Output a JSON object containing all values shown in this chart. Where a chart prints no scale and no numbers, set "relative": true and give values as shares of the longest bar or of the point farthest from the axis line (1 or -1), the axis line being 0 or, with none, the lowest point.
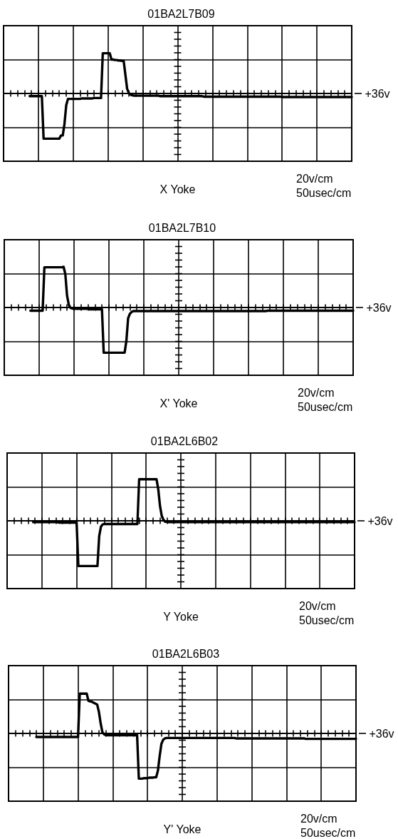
{
  "chart_data": [
    {
      "type": "line",
      "title": "01BA2L7B09",
      "xlabel": "X Yoke",
      "annotations": [
        "20v/cm",
        "50usec/cm"
      ],
      "relative": true,
      "grid": true,
      "marker": "none",
      "color": "#000000",
      "ref_lines": [
        {
          "axis": "y",
          "value": 0,
          "label": "+36v"
        }
      ],
      "categories": [
        null,
        null,
        null,
        null,
        null,
        null,
        null,
        null,
        null,
        null,
        null,
        null,
        null,
        null,
        null,
        null,
        null,
        null,
        null,
        null,
        null,
        null,
        null,
        null,
        null,
        null,
        null,
        null,
        null,
        null,
        null,
        null,
        null,
        null,
        null,
        null,
        null,
        null,
        null,
        null,
        null,
        null,
        null,
        null,
        null,
        null,
        null,
        null,
        null,
        null,
        null,
        null,
        null,
        null,
        null,
        null,
        null,
        null,
        null,
        null,
        null,
        null,
        null,
        null,
        null,
        null,
        null,
        null,
        null,
        null,
        null,
        null,
        null,
        null,
        null,
        null,
        null,
        null,
        null,
        null,
        null,
        null,
        null,
        null,
        null,
        null,
        null,
        null,
        null,
        null,
        null,
        null,
        null,
        null,
        null,
        null,
        null,
        null,
        null,
        null,
        null,
        null,
        null,
        null,
        null,
        null,
        null,
        null,
        null,
        null,
        null,
        null,
        null,
        null,
        null,
        null,
        null,
        null,
        null,
        null,
        null,
        null,
        null,
        null,
        null,
        null,
        null,
        null,
        null,
        null,
        null,
        null,
        null,
        null,
        null,
        null,
        null,
        null,
        null,
        null,
        null,
        null,
        null,
        null,
        null,
        null,
        null,
        null,
        null,
        null,
        null,
        null,
        null,
        null,
        null,
        null,
        null,
        null,
        null,
        null,
        null,
        null,
        null,
        null,
        null,
        null,
        null,
        null,
        null,
        null,
        null,
        null,
        null,
        null,
        null,
        null,
        null,
        null,
        null,
        null,
        null,
        null,
        null,
        null,
        null,
        null,
        null,
        null,
        null,
        null,
        null,
        null,
        null,
        null,
        null,
        null,
        null,
        null,
        null,
        null,
        null
      ],
      "values": [
        null,
        null,
        null,
        null,
        null,
        null,
        null,
        null,
        null,
        null,
        null,
        null,
        null,
        null,
        null,
        -0.06,
        -0.06,
        -0.06,
        -0.06,
        -0.06,
        -0.06,
        -0.06,
        -0.06,
        -1,
        -1,
        -1,
        -1,
        -1,
        -1,
        -1,
        -1,
        -1,
        -1,
        -0.93,
        -0.93,
        -0.67,
        -0.26,
        -0.12,
        -0.12,
        -0.12,
        -0.12,
        -0.12,
        -0.12,
        -0.12,
        -0.12,
        -0.11,
        -0.11,
        -0.11,
        -0.11,
        -0.11,
        -0.11,
        -0.11,
        -0.1,
        -0.1,
        -0.1,
        -0.1,
        -0.1,
        0.89,
        0.89,
        0.89,
        0.89,
        0.89,
        0.75,
        0.75,
        0.74,
        0.74,
        0.73,
        0.73,
        0.72,
        0.72,
        0.41,
        0.1,
        0.01,
        -0.03,
        -0.04,
        -0.05,
        -0.05,
        -0.05,
        -0.05,
        -0.05,
        -0.05,
        -0.05,
        -0.05,
        -0.05,
        -0.05,
        -0.05,
        -0.05,
        -0.05,
        -0.05,
        -0.05,
        -0.06,
        -0.06,
        -0.06,
        -0.06,
        -0.06,
        -0.06,
        -0.06,
        -0.06,
        -0.06,
        -0.06,
        -0.06,
        -0.06,
        -0.06,
        -0.06,
        -0.06,
        -0.06,
        -0.06,
        -0.06,
        -0.06,
        -0.06,
        -0.06,
        -0.06,
        -0.06,
        -0.06,
        -0.06,
        -0.07,
        -0.07,
        -0.07,
        -0.07,
        -0.07,
        -0.07,
        -0.07,
        -0.07,
        -0.07,
        -0.07,
        -0.07,
        -0.07,
        -0.07,
        -0.07,
        -0.07,
        -0.07,
        -0.07,
        -0.07,
        -0.07,
        -0.07,
        -0.07,
        -0.07,
        -0.07,
        -0.07,
        -0.07,
        -0.07,
        -0.07,
        -0.07,
        -0.07,
        -0.07,
        -0.07,
        -0.07,
        -0.07,
        -0.07,
        -0.07,
        -0.07,
        -0.07,
        -0.07,
        -0.07,
        -0.07,
        -0.07,
        -0.07,
        -0.07,
        -0.07,
        -0.07,
        -0.08,
        -0.08,
        -0.08,
        -0.08,
        -0.08,
        -0.08,
        -0.08,
        -0.08,
        -0.08,
        -0.08,
        -0.08,
        -0.08,
        -0.08,
        -0.08,
        -0.08,
        -0.08,
        -0.08,
        -0.08,
        -0.08,
        -0.08,
        -0.08,
        -0.08,
        -0.08,
        -0.08,
        -0.08,
        -0.08,
        -0.08,
        -0.08,
        -0.08,
        -0.08,
        -0.08,
        -0.08,
        -0.08,
        -0.08,
        -0.08,
        -0.08,
        -0.08,
        -0.08,
        -0.08,
        -0.08,
        -0.08
      ]
    },
    {
      "type": "line",
      "title": "01BA2L7B10",
      "xlabel": "X' Yoke",
      "annotations": [
        "20v/cm",
        "50usec/cm"
      ],
      "relative": true,
      "grid": true,
      "marker": "none",
      "color": "#000000",
      "ref_lines": [
        {
          "axis": "y",
          "value": 0,
          "label": "+36v"
        }
      ],
      "categories": [
        null,
        null,
        null,
        null,
        null,
        null,
        null,
        null,
        null,
        null,
        null,
        null,
        null,
        null,
        null,
        null,
        null,
        null,
        null,
        null,
        null,
        null,
        null,
        null,
        null,
        null,
        null,
        null,
        null,
        null,
        null,
        null,
        null,
        null,
        null,
        null,
        null,
        null,
        null,
        null,
        null,
        null,
        null,
        null,
        null,
        null,
        null,
        null,
        null,
        null,
        null,
        null,
        null,
        null,
        null,
        null,
        null,
        null,
        null,
        null,
        null,
        null,
        null,
        null,
        null,
        null,
        null,
        null,
        null,
        null,
        null,
        null,
        null,
        null,
        null,
        null,
        null,
        null,
        null,
        null,
        null,
        null,
        null,
        null,
        null,
        null,
        null,
        null,
        null,
        null,
        null,
        null,
        null,
        null,
        null,
        null,
        null,
        null,
        null,
        null,
        null,
        null,
        null,
        null,
        null,
        null,
        null,
        null,
        null,
        null,
        null,
        null,
        null,
        null,
        null,
        null,
        null,
        null,
        null,
        null,
        null,
        null,
        null,
        null,
        null,
        null,
        null,
        null,
        null,
        null,
        null,
        null,
        null,
        null,
        null,
        null,
        null,
        null,
        null,
        null,
        null,
        null,
        null,
        null,
        null,
        null,
        null,
        null,
        null,
        null,
        null,
        null,
        null,
        null,
        null,
        null,
        null,
        null,
        null,
        null,
        null,
        null,
        null,
        null,
        null,
        null,
        null,
        null,
        null,
        null,
        null,
        null,
        null,
        null,
        null,
        null,
        null,
        null,
        null,
        null,
        null,
        null,
        null,
        null,
        null,
        null,
        null,
        null,
        null,
        null,
        null,
        null,
        null,
        null,
        null,
        null,
        null,
        null,
        null,
        null,
        null
      ],
      "values": [
        null,
        null,
        null,
        null,
        null,
        null,
        null,
        null,
        null,
        null,
        null,
        null,
        null,
        null,
        null,
        -0.07,
        -0.07,
        -0.07,
        -0.07,
        -0.07,
        -0.07,
        -0.07,
        -0.07,
        0.89,
        0.89,
        0.89,
        0.89,
        0.89,
        0.89,
        0.89,
        0.89,
        0.89,
        0.89,
        0.89,
        0.9,
        0.74,
        0.26,
        0.06,
        -0.01,
        -0.02,
        -0.03,
        -0.03,
        -0.03,
        -0.03,
        -0.03,
        -0.03,
        -0.03,
        -0.03,
        -0.03,
        -0.04,
        -0.04,
        -0.04,
        -0.04,
        -0.04,
        -0.04,
        -0.04,
        -0.04,
        -1,
        -1,
        -1,
        -1,
        -1,
        -1,
        -1,
        -1,
        -1,
        -1,
        -1,
        -1,
        -1,
        -0.74,
        -0.24,
        -0.14,
        -0.1,
        -0.08,
        -0.08,
        -0.08,
        -0.08,
        -0.08,
        -0.08,
        -0.08,
        -0.08,
        -0.08,
        -0.08,
        -0.08,
        -0.08,
        -0.08,
        -0.08,
        -0.08,
        -0.08,
        -0.08,
        -0.08,
        -0.08,
        -0.08,
        -0.08,
        -0.08,
        -0.08,
        -0.08,
        -0.08,
        -0.08,
        -0.08,
        -0.08,
        -0.08,
        -0.08,
        -0.08,
        -0.08,
        -0.08,
        -0.08,
        -0.08,
        -0.08,
        -0.08,
        -0.08,
        -0.08,
        -0.08,
        -0.08,
        -0.08,
        -0.08,
        -0.08,
        -0.08,
        -0.08,
        -0.08,
        -0.08,
        -0.08,
        -0.08,
        -0.08,
        -0.08,
        -0.08,
        -0.08,
        -0.08,
        -0.08,
        -0.08,
        -0.08,
        -0.08,
        -0.08,
        -0.08,
        -0.08,
        -0.08,
        -0.08,
        -0.08,
        -0.08,
        -0.08,
        -0.08,
        -0.08,
        -0.08,
        -0.08,
        -0.08,
        -0.08,
        -0.08,
        -0.08,
        -0.08,
        -0.08,
        -0.07,
        -0.07,
        -0.07,
        -0.07,
        -0.07,
        -0.07,
        -0.07,
        -0.07,
        -0.07,
        -0.07,
        -0.07,
        -0.07,
        -0.07,
        -0.07,
        -0.07,
        -0.07,
        -0.07,
        -0.07,
        -0.07,
        -0.07,
        -0.07,
        -0.07,
        -0.07,
        -0.07,
        -0.07,
        -0.07,
        -0.07,
        -0.07,
        -0.07,
        -0.07,
        -0.07,
        -0.07,
        -0.07,
        -0.07,
        -0.07,
        -0.07,
        -0.07,
        -0.07,
        -0.07,
        -0.07,
        -0.07,
        -0.07,
        -0.07,
        -0.07,
        -0.07,
        -0.07,
        -0.07,
        -0.07,
        -0.07,
        -0.07
      ]
    },
    {
      "type": "line",
      "title": "01BA2L6B02",
      "xlabel": "Y Yoke",
      "annotations": [
        "20v/cm",
        "50usec/cm"
      ],
      "relative": true,
      "grid": true,
      "marker": "none",
      "color": "#000000",
      "ref_lines": [
        {
          "axis": "y",
          "value": 0,
          "label": "+36v"
        }
      ],
      "categories": [
        null,
        null,
        null,
        null,
        null,
        null,
        null,
        null,
        null,
        null,
        null,
        null,
        null,
        null,
        null,
        null,
        null,
        null,
        null,
        null,
        null,
        null,
        null,
        null,
        null,
        null,
        null,
        null,
        null,
        null,
        null,
        null,
        null,
        null,
        null,
        null,
        null,
        null,
        null,
        null,
        null,
        null,
        null,
        null,
        null,
        null,
        null,
        null,
        null,
        null,
        null,
        null,
        null,
        null,
        null,
        null,
        null,
        null,
        null,
        null,
        null,
        null,
        null,
        null,
        null,
        null,
        null,
        null,
        null,
        null,
        null,
        null,
        null,
        null,
        null,
        null,
        null,
        null,
        null,
        null,
        null,
        null,
        null,
        null,
        null,
        null,
        null,
        null,
        null,
        null,
        null,
        null,
        null,
        null,
        null,
        null,
        null,
        null,
        null,
        null,
        null,
        null,
        null,
        null,
        null,
        null,
        null,
        null,
        null,
        null,
        null,
        null,
        null,
        null,
        null,
        null,
        null,
        null,
        null,
        null,
        null,
        null,
        null,
        null,
        null,
        null,
        null,
        null,
        null,
        null,
        null,
        null,
        null,
        null,
        null,
        null,
        null,
        null,
        null,
        null,
        null,
        null,
        null,
        null,
        null,
        null,
        null,
        null,
        null,
        null,
        null,
        null,
        null,
        null,
        null,
        null,
        null,
        null,
        null,
        null,
        null,
        null,
        null,
        null,
        null,
        null,
        null,
        null,
        null,
        null,
        null,
        null,
        null,
        null,
        null,
        null,
        null,
        null,
        null,
        null,
        null,
        null,
        null,
        null,
        null,
        null,
        null,
        null,
        null,
        null,
        null,
        null,
        null,
        null,
        null,
        null,
        null,
        null,
        null,
        null,
        null
      ],
      "values": [
        null,
        null,
        null,
        null,
        null,
        null,
        null,
        null,
        null,
        null,
        null,
        null,
        null,
        null,
        null,
        -0.03,
        -0.03,
        -0.03,
        -0.03,
        -0.03,
        -0.03,
        -0.03,
        -0.03,
        -0.03,
        -0.03,
        -0.03,
        -0.03,
        -0.03,
        -0.03,
        -0.03,
        -0.04,
        -0.04,
        -0.04,
        -0.04,
        -0.04,
        -0.04,
        -0.04,
        -0.04,
        -0.04,
        -0.04,
        -0.04,
        -1,
        -1,
        -1,
        -1,
        -1,
        -1,
        -1,
        -1,
        -1,
        -1,
        -1,
        -1,
        -0.34,
        -0.13,
        -0.08,
        -0.07,
        -0.07,
        -0.07,
        -0.07,
        -0.07,
        -0.07,
        -0.07,
        -0.07,
        -0.07,
        -0.07,
        -0.07,
        -0.07,
        -0.07,
        -0.07,
        -0.07,
        -0.07,
        -0.07,
        -0.07,
        -0.07,
        -0.07,
        0.92,
        0.92,
        0.92,
        0.92,
        0.92,
        0.92,
        0.92,
        0.92,
        0.92,
        0.92,
        0.92,
        0.7,
        0.33,
        0.11,
        0.02,
        -0.02,
        -0.02,
        -0.03,
        -0.03,
        -0.03,
        -0.03,
        -0.03,
        -0.03,
        -0.03,
        -0.03,
        -0.03,
        -0.03,
        -0.03,
        -0.03,
        -0.03,
        -0.03,
        -0.03,
        -0.03,
        -0.03,
        -0.03,
        -0.03,
        -0.03,
        -0.03,
        -0.03,
        -0.03,
        -0.03,
        -0.03,
        -0.03,
        -0.03,
        -0.03,
        -0.03,
        -0.03,
        -0.03,
        -0.03,
        -0.03,
        -0.03,
        -0.03,
        -0.03,
        -0.03,
        -0.03,
        -0.03,
        -0.03,
        -0.03,
        -0.03,
        -0.03,
        -0.03,
        -0.03,
        -0.03,
        -0.03,
        -0.03,
        -0.03,
        -0.03,
        -0.03,
        -0.03,
        -0.03,
        -0.03,
        -0.03,
        -0.03,
        -0.03,
        -0.03,
        -0.03,
        -0.03,
        -0.03,
        -0.03,
        -0.03,
        -0.03,
        -0.03,
        -0.03,
        -0.03,
        -0.03,
        -0.03,
        -0.03,
        -0.03,
        -0.03,
        -0.03,
        -0.03,
        -0.03,
        -0.03,
        -0.03,
        -0.03,
        -0.03,
        -0.03,
        -0.03,
        -0.03,
        -0.03,
        -0.03,
        -0.03,
        -0.03,
        -0.03,
        -0.03,
        -0.03,
        -0.03,
        -0.03,
        -0.03,
        -0.03,
        -0.03,
        -0.03,
        -0.03,
        -0.03,
        -0.03,
        -0.03,
        -0.03,
        -0.03,
        -0.03,
        -0.03,
        -0.03,
        -0.03,
        -0.03,
        -0.03,
        -0.03
      ]
    },
    {
      "type": "line",
      "title": "01BA2L6B03",
      "xlabel": "Y' Yoke",
      "annotations": [
        "20v/cm",
        "50usec/cm"
      ],
      "relative": true,
      "grid": true,
      "marker": "none",
      "color": "#000000",
      "ref_lines": [
        {
          "axis": "y",
          "value": 0,
          "label": "+36v"
        }
      ],
      "categories": [
        null,
        null,
        null,
        null,
        null,
        null,
        null,
        null,
        null,
        null,
        null,
        null,
        null,
        null,
        null,
        null,
        null,
        null,
        null,
        null,
        null,
        null,
        null,
        null,
        null,
        null,
        null,
        null,
        null,
        null,
        null,
        null,
        null,
        null,
        null,
        null,
        null,
        null,
        null,
        null,
        null,
        null,
        null,
        null,
        null,
        null,
        null,
        null,
        null,
        null,
        null,
        null,
        null,
        null,
        null,
        null,
        null,
        null,
        null,
        null,
        null,
        null,
        null,
        null,
        null,
        null,
        null,
        null,
        null,
        null,
        null,
        null,
        null,
        null,
        null,
        null,
        null,
        null,
        null,
        null,
        null,
        null,
        null,
        null,
        null,
        null,
        null,
        null,
        null,
        null,
        null,
        null,
        null,
        null,
        null,
        null,
        null,
        null,
        null,
        null,
        null,
        null,
        null,
        null,
        null,
        null,
        null,
        null,
        null,
        null,
        null,
        null,
        null,
        null,
        null,
        null,
        null,
        null,
        null,
        null,
        null,
        null,
        null,
        null,
        null,
        null,
        null,
        null,
        null,
        null,
        null,
        null,
        null,
        null,
        null,
        null,
        null,
        null,
        null,
        null,
        null,
        null,
        null,
        null,
        null,
        null,
        null,
        null,
        null,
        null,
        null,
        null,
        null,
        null,
        null,
        null,
        null,
        null,
        null,
        null,
        null,
        null,
        null,
        null,
        null,
        null,
        null,
        null,
        null,
        null,
        null,
        null,
        null,
        null,
        null,
        null,
        null,
        null,
        null,
        null,
        null,
        null,
        null,
        null,
        null,
        null,
        null,
        null,
        null,
        null,
        null,
        null,
        null,
        null,
        null,
        null,
        null,
        null,
        null,
        null,
        null
      ],
      "values": [
        null,
        null,
        null,
        null,
        null,
        null,
        null,
        null,
        null,
        null,
        null,
        null,
        null,
        null,
        null,
        null,
        -0.08,
        -0.08,
        -0.08,
        -0.08,
        -0.08,
        -0.08,
        -0.08,
        -0.08,
        -0.08,
        -0.08,
        -0.08,
        -0.08,
        -0.08,
        -0.08,
        -0.08,
        -0.08,
        -0.08,
        -0.08,
        -0.08,
        -0.08,
        -0.08,
        -0.08,
        -0.08,
        -0.08,
        -0.08,
        0.88,
        0.88,
        0.88,
        0.88,
        0.88,
        0.72,
        0.71,
        0.7,
        0.68,
        0.66,
        0.64,
        0.48,
        0.23,
        0.03,
        -0.02,
        -0.04,
        -0.04,
        -0.04,
        -0.04,
        -0.04,
        -0.04,
        -0.04,
        -0.04,
        -0.04,
        -0.04,
        -0.04,
        -0.04,
        -0.04,
        -0.04,
        -0.04,
        -0.04,
        -0.04,
        -0.04,
        -0.04,
        -1,
        -1,
        -1,
        -0.99,
        -0.99,
        -0.99,
        -0.98,
        -0.98,
        -0.98,
        -0.97,
        -0.97,
        -0.82,
        -0.5,
        -0.23,
        -0.14,
        -0.11,
        -0.1,
        -0.1,
        -0.1,
        -0.1,
        -0.1,
        -0.1,
        -0.1,
        -0.1,
        -0.1,
        -0.1,
        -0.1,
        -0.1,
        -0.1,
        -0.1,
        -0.1,
        -0.1,
        -0.1,
        -0.1,
        -0.1,
        -0.1,
        -0.1,
        -0.1,
        -0.1,
        -0.1,
        -0.1,
        -0.1,
        -0.1,
        -0.1,
        -0.1,
        -0.1,
        -0.1,
        -0.1,
        -0.1,
        -0.1,
        -0.1,
        -0.1,
        -0.1,
        -0.1,
        -0.1,
        -0.1,
        -0.11,
        -0.11,
        -0.11,
        -0.11,
        -0.11,
        -0.11,
        -0.11,
        -0.11,
        -0.11,
        -0.11,
        -0.11,
        -0.11,
        -0.11,
        -0.11,
        -0.11,
        -0.11,
        -0.11,
        -0.11,
        -0.11,
        -0.11,
        -0.11,
        -0.11,
        -0.11,
        -0.11,
        -0.11,
        -0.11,
        -0.11,
        -0.11,
        -0.11,
        -0.11,
        -0.11,
        -0.11,
        -0.11,
        -0.11,
        -0.11,
        -0.11,
        -0.11,
        -0.11,
        -0.11,
        -0.11,
        -0.12,
        -0.12,
        -0.12,
        -0.12,
        -0.12,
        -0.12,
        -0.12,
        -0.12,
        -0.12,
        -0.12,
        -0.12,
        -0.12,
        -0.12,
        -0.12,
        -0.12,
        -0.12,
        -0.12,
        -0.12,
        -0.12,
        -0.12,
        -0.12,
        -0.12,
        -0.12,
        -0.12,
        -0.12,
        -0.12,
        -0.12,
        -0.12,
        -0.12,
        -0.12
      ]
    }
  ]
}
